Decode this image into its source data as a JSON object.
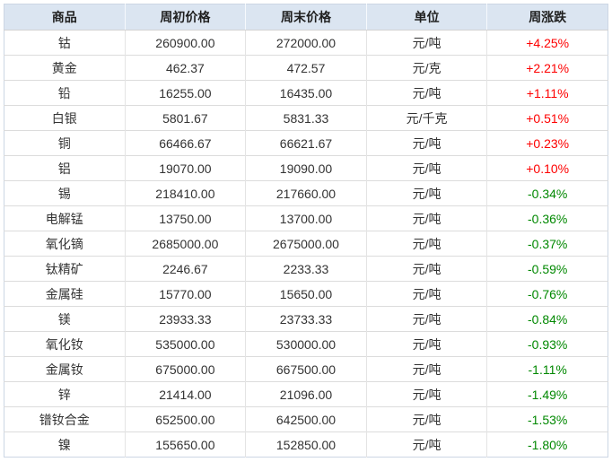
{
  "chart_data": {
    "type": "table",
    "columns": [
      "商品",
      "周初价格",
      "周末价格",
      "单位",
      "周涨跌"
    ],
    "rows": [
      [
        "钴",
        "260900.00",
        "272000.00",
        "元/吨",
        "+4.25%"
      ],
      [
        "黄金",
        "462.37",
        "472.57",
        "元/克",
        "+2.21%"
      ],
      [
        "铅",
        "16255.00",
        "16435.00",
        "元/吨",
        "+1.11%"
      ],
      [
        "白银",
        "5801.67",
        "5831.33",
        "元/千克",
        "+0.51%"
      ],
      [
        "铜",
        "66466.67",
        "66621.67",
        "元/吨",
        "+0.23%"
      ],
      [
        "铝",
        "19070.00",
        "19090.00",
        "元/吨",
        "+0.10%"
      ],
      [
        "锡",
        "218410.00",
        "217660.00",
        "元/吨",
        "-0.34%"
      ],
      [
        "电解锰",
        "13750.00",
        "13700.00",
        "元/吨",
        "-0.36%"
      ],
      [
        "氧化镝",
        "2685000.00",
        "2675000.00",
        "元/吨",
        "-0.37%"
      ],
      [
        "钛精矿",
        "2246.67",
        "2233.33",
        "元/吨",
        "-0.59%"
      ],
      [
        "金属硅",
        "15770.00",
        "15650.00",
        "元/吨",
        "-0.76%"
      ],
      [
        "镁",
        "23933.33",
        "23733.33",
        "元/吨",
        "-0.84%"
      ],
      [
        "氧化钕",
        "535000.00",
        "530000.00",
        "元/吨",
        "-0.93%"
      ],
      [
        "金属钕",
        "675000.00",
        "667500.00",
        "元/吨",
        "-1.11%"
      ],
      [
        "锌",
        "21414.00",
        "21096.00",
        "元/吨",
        "-1.49%"
      ],
      [
        "镨钕合金",
        "652500.00",
        "642500.00",
        "元/吨",
        "-1.53%"
      ],
      [
        "镍",
        "155650.00",
        "152850.00",
        "元/吨",
        "-1.80%"
      ]
    ]
  },
  "colors": {
    "up": "#fe0000",
    "down": "#008800",
    "header_bg": "#dbe5f1"
  }
}
